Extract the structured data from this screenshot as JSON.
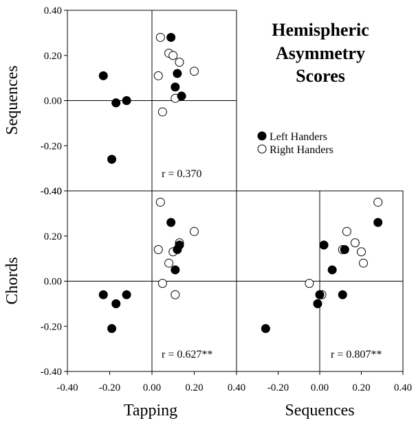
{
  "title_lines": [
    "Hemispheric",
    "Asymmetry",
    "Scores"
  ],
  "legend": {
    "left": "Left Handers",
    "right": "Right Handers"
  },
  "colors": {
    "left_handers": "#000000",
    "right_handers": "#ffffff",
    "stroke": "#000000"
  },
  "chart_data": [
    {
      "type": "scatter",
      "panel": "Sequences vs Tapping",
      "xlabel": "",
      "ylabel": "Sequences",
      "xlim": [
        -0.4,
        0.4
      ],
      "ylim": [
        -0.4,
        0.4
      ],
      "annotation": "r = 0.370",
      "yticks": [
        "-0.40",
        "-0.20",
        "0.00",
        "0.20",
        "0.40"
      ],
      "series": [
        {
          "name": "Left Handers",
          "x": [
            0.09,
            0.12,
            0.11,
            0.14,
            -0.23,
            -0.17,
            -0.12,
            -0.19
          ],
          "y": [
            0.28,
            0.12,
            0.06,
            0.02,
            0.11,
            -0.01,
            0.0,
            -0.26
          ]
        },
        {
          "name": "Right Handers",
          "x": [
            0.04,
            0.08,
            0.1,
            0.13,
            0.2,
            0.03,
            0.11,
            0.05
          ],
          "y": [
            0.28,
            0.21,
            0.2,
            0.17,
            0.13,
            0.11,
            0.01,
            -0.05
          ]
        }
      ]
    },
    {
      "type": "scatter",
      "panel": "Chords vs Tapping",
      "xlabel": "Tapping",
      "ylabel": "Chords",
      "xlim": [
        -0.4,
        0.4
      ],
      "ylim": [
        -0.4,
        0.4
      ],
      "annotation": "r = 0.627**",
      "xticks": [
        "-0.40",
        "-0.20",
        "0.00",
        "0.20",
        "0.40"
      ],
      "yticks": [
        "-0.40",
        "-0.20",
        "0.00",
        "0.20",
        "0.40"
      ],
      "series": [
        {
          "name": "Left Handers",
          "x": [
            0.09,
            0.13,
            0.12,
            0.11,
            -0.23,
            -0.17,
            -0.12,
            -0.19
          ],
          "y": [
            0.26,
            0.16,
            0.14,
            0.05,
            -0.06,
            -0.1,
            -0.06,
            -0.21
          ]
        },
        {
          "name": "Right Handers",
          "x": [
            0.04,
            0.2,
            0.03,
            0.13,
            0.1,
            0.08,
            0.05,
            0.11
          ],
          "y": [
            0.35,
            0.22,
            0.14,
            0.17,
            0.13,
            0.08,
            -0.01,
            -0.06
          ]
        }
      ]
    },
    {
      "type": "scatter",
      "panel": "Chords vs Sequences",
      "xlabel": "Sequences",
      "ylabel": "",
      "xlim": [
        -0.4,
        0.4
      ],
      "ylim": [
        -0.4,
        0.4
      ],
      "annotation": "r = 0.807**",
      "xticks": [
        "-0.20",
        "0.00",
        "0.20",
        "0.40"
      ],
      "series": [
        {
          "name": "Left Handers",
          "x": [
            0.28,
            0.02,
            0.12,
            0.06,
            0.0,
            0.11,
            -0.01,
            -0.26
          ],
          "y": [
            0.26,
            0.16,
            0.14,
            0.05,
            -0.06,
            -0.06,
            -0.1,
            -0.21
          ]
        },
        {
          "name": "Right Handers",
          "x": [
            0.28,
            0.13,
            0.17,
            0.11,
            0.2,
            0.21,
            -0.05,
            0.01
          ],
          "y": [
            0.35,
            0.22,
            0.17,
            0.14,
            0.13,
            0.08,
            -0.01,
            -0.06
          ]
        }
      ]
    }
  ]
}
